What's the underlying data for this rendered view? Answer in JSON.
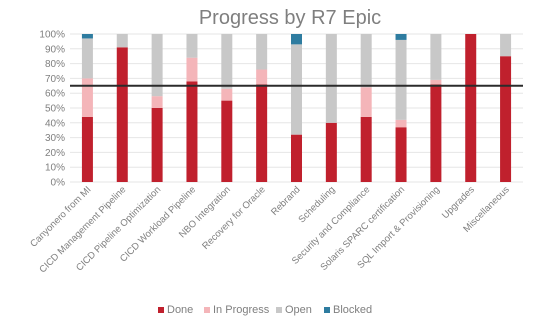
{
  "chart_data": {
    "type": "bar",
    "stacked": true,
    "title": "Progress by R7 Epic",
    "categories": [
      "Canyonero from MI",
      "CICD Management Pipeline",
      "CICD Pipeline Optimization",
      "CICD Workload Pipeline",
      "NBO Integration",
      "Recovery for Oracle",
      "Rebrand",
      "Scheduling",
      "Security and Compliance",
      "Solaris SPARC certification",
      "SQL Import & Provisioning",
      "Upgrades",
      "Miscellaneous"
    ],
    "series": [
      {
        "name": "Done",
        "color": "#c0202d",
        "values": [
          44,
          91,
          50,
          68,
          55,
          66,
          32,
          40,
          44,
          37,
          66,
          100,
          85
        ]
      },
      {
        "name": "In Progress",
        "color": "#f4b5b9",
        "values": [
          26,
          0,
          8,
          16,
          8,
          10,
          0,
          0,
          20,
          5,
          3,
          0,
          0
        ]
      },
      {
        "name": "Open",
        "color": "#c8c8c8",
        "values": [
          27,
          9,
          42,
          16,
          37,
          24,
          61,
          60,
          36,
          54,
          31,
          0,
          15
        ]
      },
      {
        "name": "Blocked",
        "color": "#2e7ca0",
        "values": [
          3,
          0,
          0,
          0,
          0,
          0,
          7,
          0,
          0,
          4,
          0,
          0,
          0
        ]
      }
    ],
    "ylim": [
      0,
      100
    ],
    "yticks": [
      "0%",
      "10%",
      "20%",
      "30%",
      "40%",
      "50%",
      "60%",
      "70%",
      "80%",
      "90%",
      "100%"
    ],
    "reference_line": 65,
    "reference_line_color": "#2b2b2b",
    "legend_position": "bottom",
    "grid": true
  }
}
